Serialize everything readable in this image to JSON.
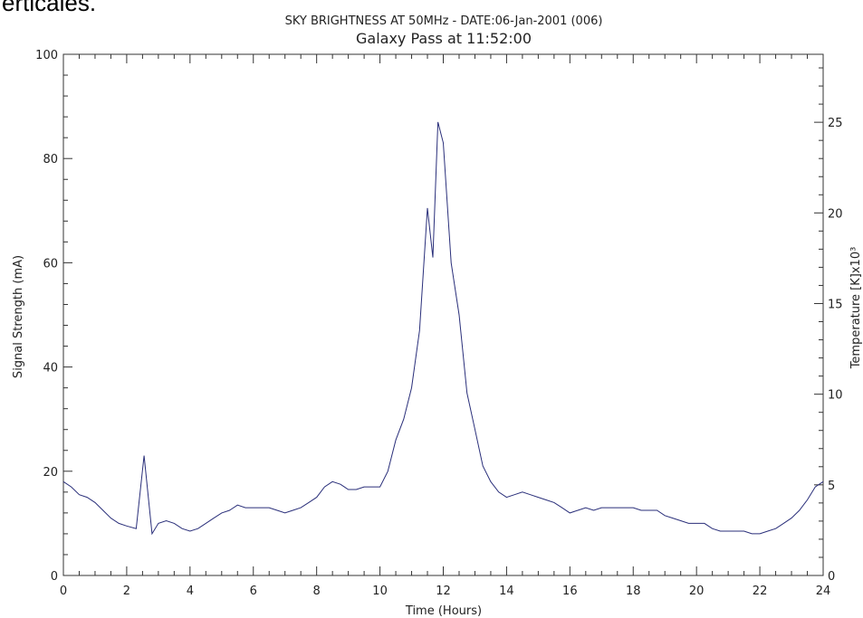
{
  "fragment_text": "erticales.",
  "chart_data": {
    "type": "line",
    "title": "SKY BRIGHTNESS AT 50MHz - DATE:06-Jan-2001 (006)",
    "subtitle": "Galaxy Pass at 11:52:00",
    "xlabel": "Time (Hours)",
    "ylabel": "Signal Strength (mA)",
    "y2label": "Temperature [K]x10³",
    "xlim": [
      0,
      24
    ],
    "ylim": [
      0,
      100
    ],
    "y2lim": [
      0,
      28.75
    ],
    "x_ticks": [
      0,
      2,
      4,
      6,
      8,
      10,
      12,
      14,
      16,
      18,
      20,
      22,
      24
    ],
    "x_tick_labels": [
      "0",
      "2",
      "4",
      "6",
      "8",
      "10",
      "12",
      "14",
      "16",
      "18",
      "20",
      "22",
      "24"
    ],
    "y_ticks": [
      0,
      20,
      40,
      60,
      80,
      100
    ],
    "y_tick_labels": [
      "0",
      "20",
      "40",
      "60",
      "80",
      "100"
    ],
    "y2_ticks": [
      0,
      5,
      10,
      15,
      20,
      25
    ],
    "y2_tick_labels": [
      "0",
      "5",
      "10",
      "15",
      "20",
      "25"
    ],
    "grid": false,
    "line_color": "#2a2f7a",
    "series": [
      {
        "x": [
          0,
          0.25,
          0.5,
          0.75,
          1,
          1.25,
          1.5,
          1.75,
          2,
          2.3,
          2.55,
          2.8,
          3,
          3.25,
          3.5,
          3.75,
          4,
          4.25,
          4.5,
          4.75,
          5,
          5.25,
          5.5,
          5.75,
          6,
          6.25,
          6.5,
          6.75,
          7,
          7.25,
          7.5,
          7.75,
          8,
          8.25,
          8.5,
          8.75,
          9,
          9.25,
          9.5,
          9.75,
          10,
          10.25,
          10.5,
          10.75,
          11,
          11.25,
          11.5,
          11.67,
          11.83,
          12,
          12.25,
          12.5,
          12.75,
          13,
          13.25,
          13.5,
          13.75,
          14,
          14.25,
          14.5,
          14.75,
          15,
          15.25,
          15.5,
          15.75,
          16,
          16.25,
          16.5,
          16.75,
          17,
          17.25,
          17.5,
          17.75,
          18,
          18.25,
          18.5,
          18.75,
          19,
          19.25,
          19.5,
          19.75,
          20,
          20.25,
          20.5,
          20.75,
          21,
          21.25,
          21.5,
          21.75,
          22,
          22.25,
          22.5,
          22.75,
          23,
          23.25,
          23.5,
          23.75,
          24
        ],
        "y": [
          18,
          17,
          15.5,
          15,
          14,
          12.5,
          11,
          10,
          9.5,
          9,
          23,
          8,
          10,
          10.5,
          10,
          9,
          8.5,
          9,
          10,
          11,
          12,
          12.5,
          13.5,
          13,
          13,
          13,
          13,
          12.5,
          12,
          12.5,
          13,
          14,
          15,
          17,
          18,
          17.5,
          16.5,
          16.5,
          17,
          17,
          17,
          20,
          26,
          30,
          36,
          47,
          70.5,
          61,
          87,
          83,
          60,
          50,
          35,
          28,
          21,
          18,
          16,
          15,
          15.5,
          16,
          15.5,
          15,
          14.5,
          14,
          13,
          12,
          12.5,
          13,
          12.5,
          13,
          13,
          13,
          13,
          13,
          12.5,
          12.5,
          12.5,
          11.5,
          11,
          10.5,
          10,
          10,
          10,
          9,
          8.5,
          8.5,
          8.5,
          8.5,
          8,
          8,
          8.5,
          9,
          10,
          11,
          12.5,
          14.5,
          17,
          18
        ]
      }
    ]
  }
}
